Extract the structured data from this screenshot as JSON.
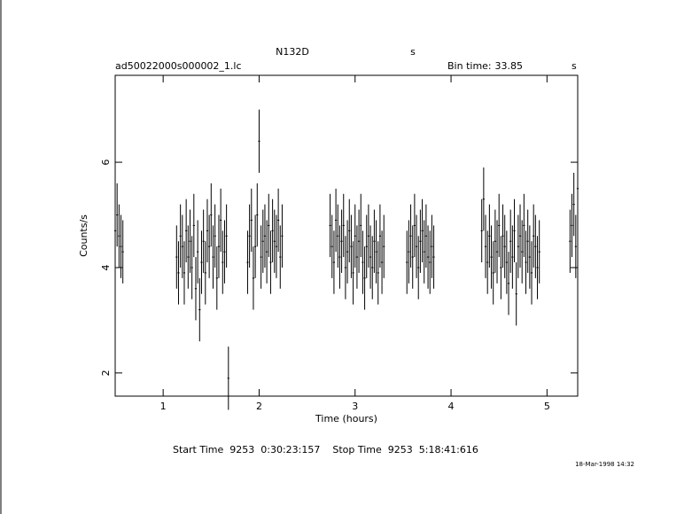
{
  "chart_data": {
    "type": "errorbar",
    "title": "N132D",
    "title_unit": "s",
    "subtitle": "ad50022000s000002_1.lc",
    "bin_time_label": "Bin time:",
    "bin_time": "33.85",
    "bin_time_unit": "s",
    "x_label": "Time (hours)",
    "y_label": "Counts/s",
    "footer": "Start Time  9253  0:30:23:157    Stop Time  9253  5:18:41:616",
    "timestamp": "18-Mar-1998 14:32",
    "color": "#000000",
    "xlim": [
      0.5,
      5.32
    ],
    "ylim": [
      1.56,
      7.65
    ],
    "xticks": [
      1,
      2,
      3,
      4,
      5
    ],
    "yticks": [
      2,
      4,
      6
    ],
    "error": 0.6,
    "x": [
      0.5,
      0.52,
      0.54,
      0.56,
      0.58,
      1.14,
      1.16,
      1.18,
      1.2,
      1.22,
      1.24,
      1.26,
      1.28,
      1.3,
      1.32,
      1.34,
      1.36,
      1.38,
      1.4,
      1.42,
      1.44,
      1.46,
      1.48,
      1.5,
      1.52,
      1.54,
      1.56,
      1.58,
      1.6,
      1.62,
      1.64,
      1.66,
      1.68,
      1.88,
      1.9,
      1.92,
      1.94,
      1.96,
      1.98,
      2.0,
      2.02,
      2.04,
      2.06,
      2.08,
      2.1,
      2.12,
      2.14,
      2.16,
      2.18,
      2.2,
      2.22,
      2.24,
      2.74,
      2.76,
      2.78,
      2.8,
      2.82,
      2.84,
      2.86,
      2.88,
      2.9,
      2.92,
      2.94,
      2.96,
      2.98,
      3.0,
      3.02,
      3.04,
      3.06,
      3.08,
      3.1,
      3.12,
      3.14,
      3.16,
      3.18,
      3.2,
      3.22,
      3.24,
      3.26,
      3.28,
      3.3,
      3.54,
      3.56,
      3.58,
      3.6,
      3.62,
      3.64,
      3.66,
      3.68,
      3.7,
      3.72,
      3.74,
      3.76,
      3.78,
      3.8,
      3.82,
      4.32,
      4.34,
      4.36,
      4.38,
      4.4,
      4.42,
      4.44,
      4.46,
      4.48,
      4.5,
      4.52,
      4.54,
      4.56,
      4.58,
      4.6,
      4.62,
      4.64,
      4.66,
      4.68,
      4.7,
      4.72,
      4.74,
      4.76,
      4.78,
      4.8,
      4.82,
      4.84,
      4.86,
      4.88,
      4.9,
      4.92,
      5.24,
      5.26,
      5.28,
      5.3,
      5.32
    ],
    "values": [
      4.7,
      5.0,
      4.6,
      4.4,
      4.3,
      4.2,
      3.9,
      4.6,
      4.4,
      3.9,
      4.7,
      4.2,
      4.5,
      4.0,
      4.8,
      3.6,
      4.3,
      3.2,
      4.1,
      4.5,
      3.9,
      4.7,
      4.4,
      5.0,
      4.2,
      4.6,
      3.8,
      4.4,
      4.9,
      4.1,
      4.3,
      4.6,
      1.9,
      4.1,
      4.6,
      4.9,
      3.8,
      4.4,
      5.0,
      6.4,
      4.2,
      4.5,
      4.6,
      4.3,
      4.8,
      4.1,
      4.7,
      4.5,
      4.4,
      4.9,
      4.2,
      4.6,
      4.8,
      4.4,
      4.1,
      4.9,
      4.6,
      4.2,
      4.5,
      4.8,
      4.0,
      4.3,
      4.7,
      4.4,
      3.9,
      4.6,
      4.2,
      4.5,
      4.8,
      4.1,
      3.8,
      4.4,
      4.6,
      4.2,
      4.0,
      4.5,
      4.3,
      3.9,
      4.6,
      4.1,
      4.4,
      4.1,
      4.3,
      4.6,
      4.2,
      4.8,
      4.4,
      4.0,
      4.5,
      4.7,
      4.3,
      4.6,
      4.2,
      4.1,
      4.4,
      4.2,
      4.7,
      5.3,
      4.4,
      4.1,
      4.6,
      4.2,
      3.9,
      4.5,
      4.3,
      4.8,
      4.0,
      4.6,
      4.4,
      4.1,
      3.7,
      4.5,
      4.2,
      4.7,
      3.5,
      4.4,
      4.6,
      4.3,
      4.8,
      4.1,
      4.5,
      4.2,
      3.9,
      4.6,
      4.4,
      4.0,
      4.3,
      4.5,
      4.8,
      5.2,
      4.4,
      5.5
    ]
  }
}
